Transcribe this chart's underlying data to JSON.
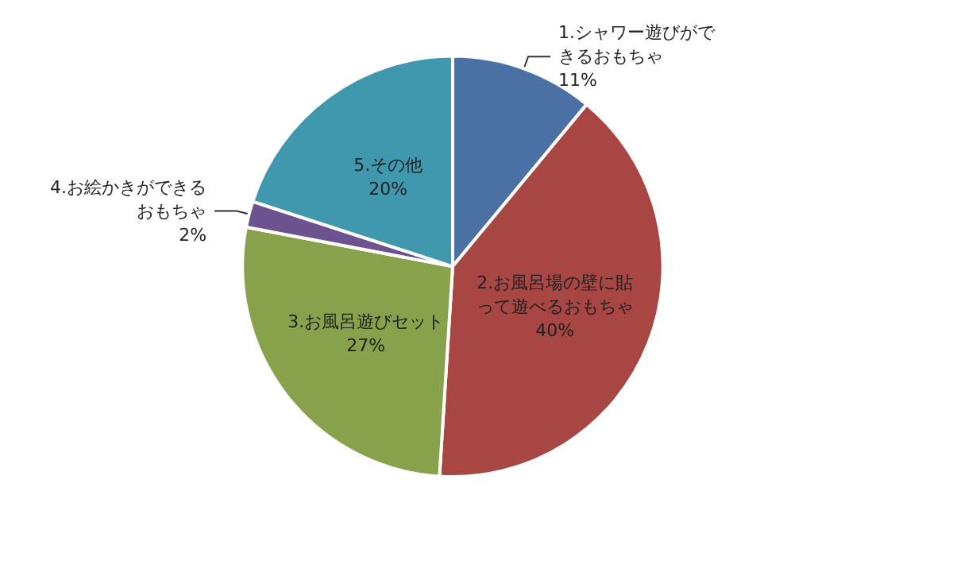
{
  "chart_data": {
    "type": "pie",
    "categories": [
      "1.シャワー遊びができるおもちゃ",
      "2.お風呂場の壁に貼って遊べるおもちゃ",
      "3.お風呂遊びセット",
      "4.お絵かきができるおもちゃ",
      "5.その他"
    ],
    "values": [
      11,
      40,
      27,
      2,
      20
    ],
    "colors": [
      "#4a70a4",
      "#a84643",
      "#87a24b",
      "#6c5390",
      "#3f98ae"
    ],
    "value_labels": [
      "11%",
      "40%",
      "27%",
      "2%",
      "20%"
    ],
    "legend": false
  }
}
